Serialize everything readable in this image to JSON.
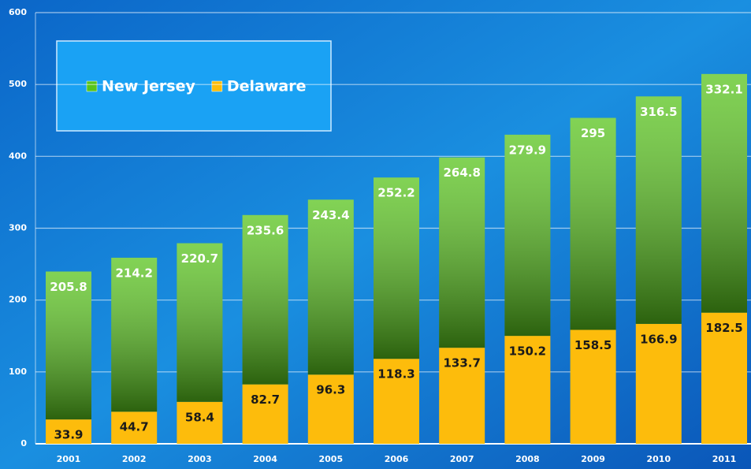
{
  "chart_data": {
    "type": "stacked_bar",
    "categories": [
      "2001",
      "2002",
      "2003",
      "2004",
      "2005",
      "2006",
      "2007",
      "2008",
      "2009",
      "2010",
      "2011"
    ],
    "series": [
      {
        "name": "New Jersey",
        "color": "#58c41c",
        "values": [
          205.8,
          214.2,
          220.7,
          235.6,
          243.4,
          252.2,
          264.8,
          279.9,
          295,
          316.5,
          332.1
        ]
      },
      {
        "name": "Delaware",
        "color": "#fdbc0c",
        "values": [
          33.9,
          44.7,
          58.4,
          82.7,
          96.3,
          118.3,
          133.7,
          150.2,
          158.5,
          166.9,
          182.5
        ]
      }
    ],
    "ylim": [
      0,
      600
    ],
    "yticks": [
      0,
      100,
      200,
      300,
      400,
      500,
      600
    ],
    "grid": true,
    "legend": "top-left"
  }
}
